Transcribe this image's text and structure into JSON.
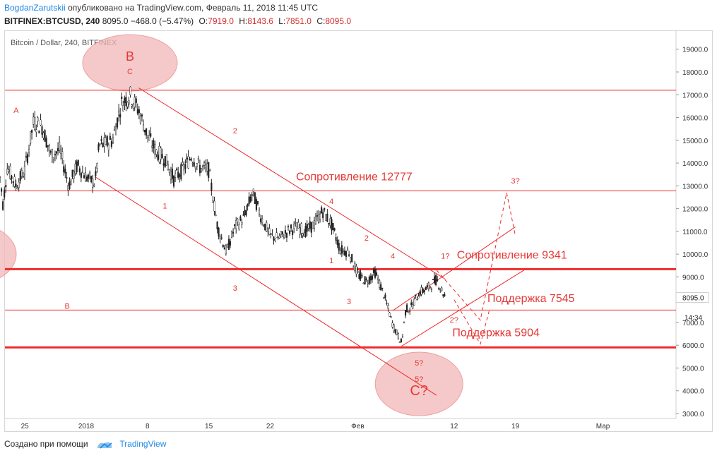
{
  "header": {
    "author": "BogdanZarutskii",
    "published": "опубликовано на TradingView.com, Февраль 11, 2018 11:45 UTC",
    "symbol": "BITFINEX:BTCUSD, 240",
    "last": "8095.0",
    "change": "−468.0 (−5.47%)",
    "o_label": "O:",
    "o_val": "7919.0",
    "h_label": "H:",
    "h_val": "8143.6",
    "l_label": "L:",
    "l_val": "7851.0",
    "c_label": "C:",
    "c_val": "8095.0"
  },
  "footer": {
    "made_with": "Создано при помощи",
    "brand": "TradingView"
  },
  "chart_data": {
    "type": "candlestick",
    "title": "Bitcoin / Dollar, 240, BITFINEX",
    "yticks": [
      3000,
      4000,
      5000,
      6000,
      7000,
      8000,
      9000,
      10000,
      11000,
      12000,
      13000,
      14000,
      15000,
      16000,
      17000,
      18000,
      19000
    ],
    "ylim": [
      2600,
      19900
    ],
    "xticks": [
      "25",
      "2018",
      "8",
      "15",
      "22",
      "Фев",
      "12",
      "19",
      "Мар"
    ],
    "price_label": "8095.0",
    "countdown_label": "14:34",
    "price_path": [
      [
        "2017-12-22",
        14000
      ],
      [
        "2017-12-22 12:00",
        12200
      ],
      [
        "2017-12-23",
        13800
      ],
      [
        "2017-12-24",
        13000
      ],
      [
        "2017-12-25",
        13700
      ],
      [
        "2017-12-26",
        15800
      ],
      [
        "2017-12-27",
        15600
      ],
      [
        "2017-12-28",
        14300
      ],
      [
        "2017-12-29",
        14600
      ],
      [
        "2017-12-30",
        13000
      ],
      [
        "2017-12-31",
        13900
      ],
      [
        "2018-01-01",
        13400
      ],
      [
        "2018-01-02",
        13100
      ],
      [
        "2018-01-02 12:00",
        14800
      ],
      [
        "2018-01-03",
        14800
      ],
      [
        "2018-01-04",
        15000
      ],
      [
        "2018-01-05",
        16600
      ],
      [
        "2018-01-06",
        17000
      ],
      [
        "2018-01-07",
        16300
      ],
      [
        "2018-01-08",
        15200
      ],
      [
        "2018-01-09",
        14500
      ],
      [
        "2018-01-10",
        14200
      ],
      [
        "2018-01-11",
        13300
      ],
      [
        "2018-01-12",
        13700
      ],
      [
        "2018-01-13",
        14300
      ],
      [
        "2018-01-14",
        13800
      ],
      [
        "2018-01-15",
        13700
      ],
      [
        "2018-01-16",
        11200
      ],
      [
        "2018-01-17",
        10100
      ],
      [
        "2018-01-18",
        11200
      ],
      [
        "2018-01-19",
        11600
      ],
      [
        "2018-01-20",
        12700
      ],
      [
        "2018-01-21",
        11600
      ],
      [
        "2018-01-22",
        10800
      ],
      [
        "2018-01-23",
        10700
      ],
      [
        "2018-01-24",
        11000
      ],
      [
        "2018-01-25",
        11200
      ],
      [
        "2018-01-26",
        11000
      ],
      [
        "2018-01-27",
        11300
      ],
      [
        "2018-01-28",
        11900
      ],
      [
        "2018-01-29",
        11300
      ],
      [
        "2018-01-30",
        10200
      ],
      [
        "2018-01-31",
        10100
      ],
      [
        "2018-02-01",
        9100
      ],
      [
        "2018-02-02",
        8800
      ],
      [
        "2018-02-03",
        9200
      ],
      [
        "2018-02-04",
        8200
      ],
      [
        "2018-02-05",
        6900
      ],
      [
        "2018-02-06",
        6100
      ],
      [
        "2018-02-06 12:00",
        7600
      ],
      [
        "2018-02-07",
        7600
      ],
      [
        "2018-02-08",
        8300
      ],
      [
        "2018-02-09",
        8500
      ],
      [
        "2018-02-10",
        8900
      ],
      [
        "2018-02-11",
        8095
      ]
    ],
    "horizontal_levels": [
      {
        "price": 17200,
        "width": "thin"
      },
      {
        "price": 12777,
        "label": "Сопротивление 12777",
        "width": "thin"
      },
      {
        "price": 9341,
        "label": "Сопротивление 9341",
        "width": "thick"
      },
      {
        "price": 7545,
        "label": "Поддержка 7545",
        "width": "thin"
      },
      {
        "price": 5904,
        "label": "Поддержка 5904",
        "width": "thick"
      }
    ],
    "annotations": [
      "A",
      "B",
      "B",
      "C",
      "1",
      "2",
      "3",
      "4",
      "1",
      "2",
      "3",
      "4",
      "5?",
      "5?",
      "C?",
      "1?",
      "2?",
      "3?"
    ],
    "colors": {
      "candle": "#222222",
      "annotation": "#e53935",
      "level": "#ef2b2b",
      "ellipse_fill": "#f2b8b8",
      "ellipse_stroke": "#e88080",
      "axis_text": "#333333",
      "price_tag": "#222222"
    }
  }
}
